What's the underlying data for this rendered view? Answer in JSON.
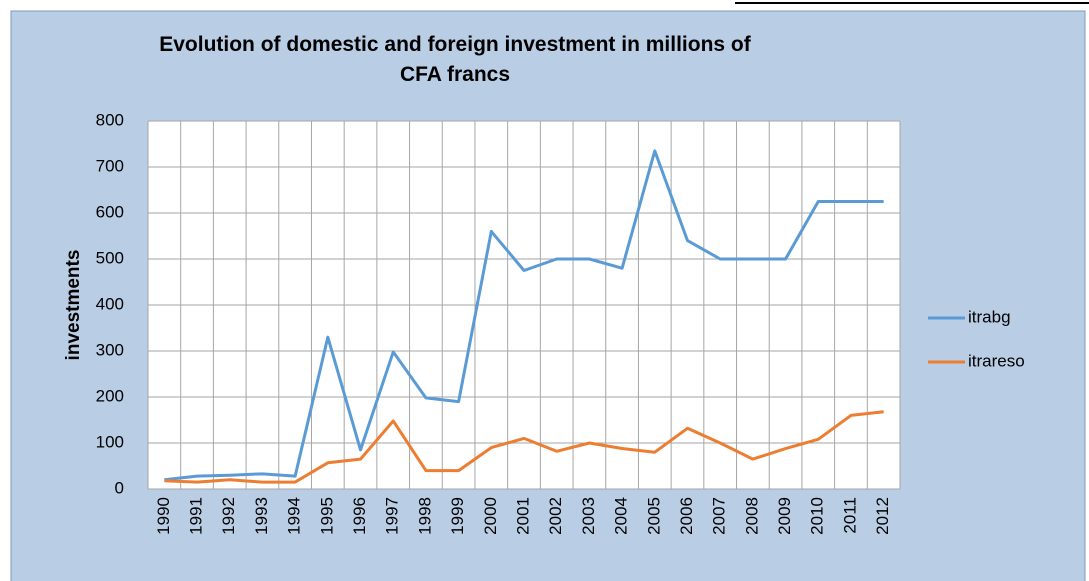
{
  "chart_data": {
    "type": "line",
    "title": "Evolution of domestic and foreign investment in millions of CFA francs",
    "ylabel": "investments",
    "categories": [
      "1990",
      "1991",
      "1992",
      "1993",
      "1994",
      "1995",
      "1996",
      "1997",
      "1998",
      "1999",
      "2000",
      "2001",
      "2002",
      "2003",
      "2004",
      "2005",
      "2006",
      "2007",
      "2008",
      "2009",
      "2010",
      "2011",
      "2012"
    ],
    "series": [
      {
        "name": "itrabg",
        "color": "#5b9bd5",
        "values": [
          20,
          28,
          30,
          33,
          28,
          330,
          85,
          298,
          198,
          190,
          560,
          475,
          500,
          500,
          480,
          735,
          540,
          500,
          500,
          500,
          625,
          625,
          625
        ]
      },
      {
        "name": "itrareso",
        "color": "#ed7d31",
        "values": [
          18,
          15,
          20,
          15,
          15,
          57,
          65,
          148,
          40,
          40,
          90,
          110,
          82,
          100,
          88,
          80,
          132,
          100,
          65,
          88,
          108,
          160,
          168
        ]
      }
    ],
    "ylim": [
      0,
      800
    ],
    "yticks": [
      0,
      100,
      200,
      300,
      400,
      500,
      600,
      700,
      800
    ],
    "grid": true,
    "legend": "right"
  }
}
